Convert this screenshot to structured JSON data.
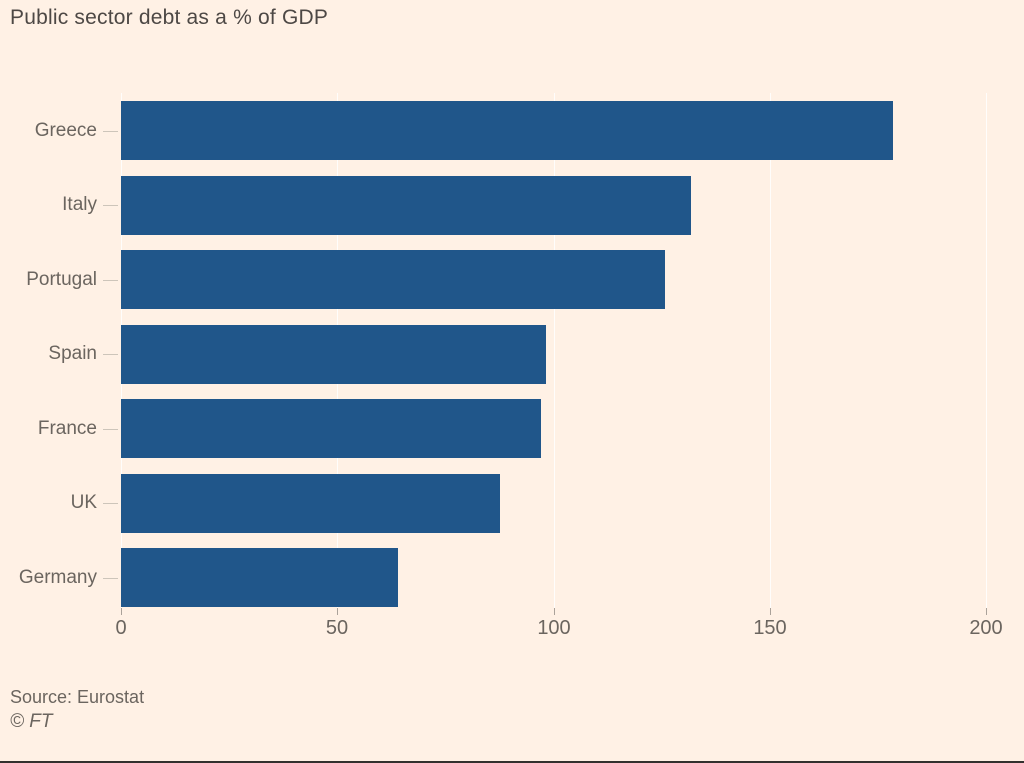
{
  "chart_data": {
    "type": "bar",
    "orientation": "horizontal",
    "title": "Public sector debt as a % of GDP",
    "categories": [
      "Greece",
      "Italy",
      "Portugal",
      "Spain",
      "France",
      "UK",
      "Germany"
    ],
    "values": [
      178.6,
      131.8,
      125.7,
      98.3,
      97.0,
      87.7,
      64.1
    ],
    "xlim": [
      0,
      200
    ],
    "x_ticks": [
      0,
      50,
      100,
      150,
      200
    ],
    "x_tick_labels": [
      "0",
      "50",
      "100",
      "150",
      "200"
    ],
    "xlabel": "",
    "ylabel": "",
    "legend": null,
    "grid": "vertical-gridlines-on",
    "colors": {
      "bar": "#20568A",
      "background": "#FFF1E5",
      "title_text": "#4d4845",
      "axis_text": "#6b655f",
      "gridline": "#ffffff",
      "tick": "#aaa29a"
    },
    "source": "Source: Eurostat",
    "credit": "© FT"
  }
}
